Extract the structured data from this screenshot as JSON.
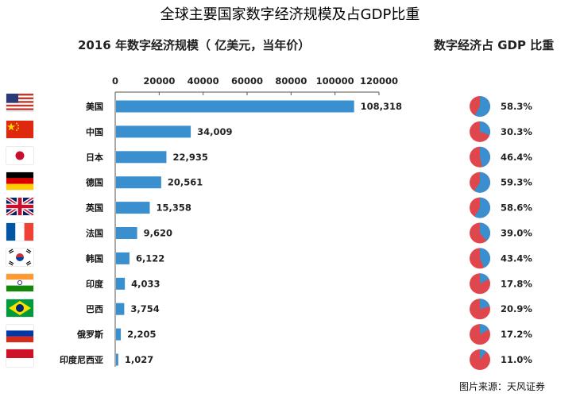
{
  "page": {
    "title": "全球主要国家数字经济规模及占GDP比重",
    "source": "图片来源：天风证券"
  },
  "icons": [
    "us-flag-icon",
    "cn-flag-icon",
    "jp-flag-icon",
    "de-flag-icon",
    "uk-flag-icon",
    "fr-flag-icon",
    "kr-flag-icon",
    "in-flag-icon",
    "br-flag-icon",
    "ru-flag-icon",
    "id-flag-icon"
  ],
  "colors": {
    "bar": "#3a8fcf",
    "pie_main": "#e0474c",
    "pie_share": "#3a8fcf"
  },
  "chart_data": [
    {
      "type": "bar",
      "orientation": "horizontal",
      "title": "2016 年数字经济规模（ 亿美元，当年价）",
      "categories": [
        "美国",
        "中国",
        "日本",
        "德国",
        "英国",
        "法国",
        "韩国",
        "印度",
        "巴西",
        "俄罗斯",
        "印度尼西亚"
      ],
      "values": [
        108318,
        34009,
        22935,
        20561,
        15358,
        9620,
        6122,
        4033,
        3754,
        2205,
        1027
      ],
      "value_labels": [
        "108,318",
        "34,009",
        "22,935",
        "20,561",
        "15,358",
        "9,620",
        "6,122",
        "4,033",
        "3,754",
        "2,205",
        "1,027"
      ],
      "xlim": [
        0,
        120000
      ],
      "xticks": [
        0,
        20000,
        40000,
        60000,
        80000,
        100000,
        120000
      ],
      "xtick_labels": [
        "0",
        "20000",
        "40000",
        "60000",
        "80000",
        "100000",
        "120000"
      ],
      "axis_position": "top"
    },
    {
      "type": "pie",
      "title": "数字经济占 GDP 比重",
      "categories": [
        "美国",
        "中国",
        "日本",
        "德国",
        "英国",
        "法国",
        "韩国",
        "印度",
        "巴西",
        "俄罗斯",
        "印度尼西亚"
      ],
      "values": [
        58.3,
        30.3,
        46.4,
        59.3,
        58.6,
        39.0,
        43.4,
        17.8,
        20.9,
        17.2,
        11.0
      ],
      "labels": [
        "58.3%",
        "30.3%",
        "46.4%",
        "59.3%",
        "58.6%",
        "39.0%",
        "43.4%",
        "17.8%",
        "20.9%",
        "17.2%",
        "11.0%"
      ]
    }
  ]
}
